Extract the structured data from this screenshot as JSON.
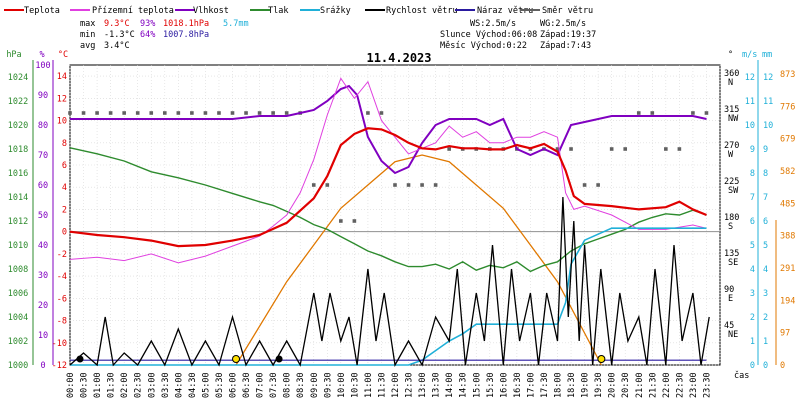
{
  "chart_data": {
    "type": "line",
    "title": "11.4.2023",
    "xlabel": "čas",
    "legend": [
      {
        "label": "Teplota",
        "color": "#e00000"
      },
      {
        "label": "Přízemní teplota",
        "color": "#e040e0"
      },
      {
        "label": "Vlhkost",
        "color": "#8000c0"
      },
      {
        "label": "Tlak",
        "color": "#2e8b2e"
      },
      {
        "label": "Srážky",
        "color": "#20b0d8"
      },
      {
        "label": "Rychlost větru",
        "color": "#000000"
      },
      {
        "label": "Náraz větru",
        "color": "#2a1aa0"
      },
      {
        "label": "Směr větru",
        "color": "#606060"
      }
    ],
    "stats": {
      "max_label": "max",
      "min_label": "min",
      "avg_label": "avg",
      "max_temp": "9.3°C",
      "max_hum": "93%",
      "max_press": "1018.1hPa",
      "max_rain": "5.7mm",
      "min_temp": "-1.3°C",
      "min_hum": "64%",
      "min_press": "1007.8hPa",
      "avg_temp": "3.4°C",
      "ws": "WS:2.5m/s",
      "wg": "WG:2.5m/s",
      "slunce": "Slunce Východ:06:08",
      "slunce_zapad": "Západ:19:37",
      "mesic": "Měsíc  Východ:0:22",
      "mesic_zapad": "Západ:7:43"
    },
    "axes": {
      "hpa_title": "hPa",
      "pct_title": "%",
      "c_title": "°C",
      "deg_title": "°",
      "ms_title": "m/s",
      "mm_title": "mm",
      "hpa_ticks": [
        "1000",
        "1002",
        "1004",
        "1006",
        "1008",
        "1010",
        "1012",
        "1014",
        "1016",
        "1018",
        "1020",
        "1022",
        "1024"
      ],
      "pct_ticks": [
        "0",
        "10",
        "20",
        "30",
        "40",
        "50",
        "60",
        "70",
        "80",
        "90",
        "100"
      ],
      "c_ticks": [
        "-12",
        "-10",
        "-8",
        "-6",
        "-4",
        "-2",
        "0",
        "2",
        "4",
        "6",
        "8",
        "10",
        "12",
        "14"
      ],
      "dir_ticks": [
        {
          "deg": "45",
          "dir": "NE"
        },
        {
          "deg": "90",
          "dir": "E"
        },
        {
          "deg": "135",
          "dir": "SE"
        },
        {
          "deg": "180",
          "dir": "S"
        },
        {
          "deg": "225",
          "dir": "SW"
        },
        {
          "deg": "270",
          "dir": "W"
        },
        {
          "deg": "315",
          "dir": "NW"
        },
        {
          "deg": "360",
          "dir": "N"
        }
      ],
      "ms_ticks": [
        "0",
        "1",
        "2",
        "3",
        "4",
        "5",
        "6",
        "7",
        "8",
        "9",
        "10",
        "11",
        "12"
      ],
      "mm_ticks": [
        "0",
        "97",
        "194",
        "291",
        "388",
        "485",
        "582",
        "679",
        "776",
        "873"
      ],
      "time_ticks": [
        "00:00",
        "00:30",
        "01:00",
        "01:30",
        "02:00",
        "02:30",
        "03:00",
        "03:30",
        "04:00",
        "04:30",
        "05:00",
        "05:30",
        "06:00",
        "06:30",
        "07:00",
        "07:30",
        "08:00",
        "08:30",
        "09:00",
        "09:30",
        "10:00",
        "10:30",
        "11:00",
        "11:30",
        "12:00",
        "12:30",
        "13:00",
        "13:30",
        "14:00",
        "14:30",
        "15:00",
        "15:30",
        "16:00",
        "16:30",
        "17:00",
        "17:30",
        "18:00",
        "18:30",
        "19:00",
        "19:30",
        "20:00",
        "20:30",
        "21:00",
        "21:30",
        "22:00",
        "22:30",
        "23:00",
        "23:30"
      ]
    },
    "series": {
      "temperature_c": {
        "x_hours": [
          0,
          1,
          2,
          3,
          4,
          5,
          6,
          7,
          8,
          9,
          9.5,
          10,
          10.5,
          11,
          11.5,
          12,
          12.5,
          13,
          13.5,
          14,
          14.5,
          15,
          15.5,
          16,
          16.5,
          17,
          17.5,
          18,
          18.3,
          18.6,
          19,
          20,
          21,
          22,
          22.5,
          23,
          23.5
        ],
        "y": [
          0,
          -0.3,
          -0.5,
          -0.8,
          -1.3,
          -1.2,
          -0.8,
          -0.3,
          0.8,
          3,
          5,
          7.8,
          8.8,
          9.3,
          9.2,
          8.7,
          8,
          7.5,
          7.4,
          7.7,
          7.5,
          7.5,
          7.4,
          7.4,
          7.8,
          7.5,
          7.9,
          7.2,
          5.5,
          3.2,
          2.5,
          2.3,
          2,
          2.2,
          2.7,
          2,
          1.5
        ]
      },
      "ground_temp_c": {
        "x_hours": [
          0,
          1,
          2,
          3,
          4,
          5,
          6,
          7,
          7.5,
          8,
          8.5,
          9,
          9.5,
          10,
          10.5,
          11,
          11.5,
          12,
          12.5,
          13,
          13.5,
          14,
          14.5,
          15,
          15.5,
          16,
          16.5,
          17,
          17.5,
          18,
          18.3,
          18.6,
          19,
          20,
          21,
          22,
          23,
          23.5
        ],
        "y": [
          -2.5,
          -2.3,
          -2.6,
          -2,
          -2.8,
          -2.2,
          -1.3,
          -0.4,
          0.5,
          1.5,
          3.5,
          6.5,
          10.5,
          13.8,
          12,
          13.5,
          10,
          8.5,
          7,
          7.5,
          8,
          9.5,
          8.5,
          9,
          8,
          8,
          8.5,
          8.5,
          9,
          8.5,
          3.5,
          2,
          2.3,
          1.5,
          0.2,
          0.2,
          0.6,
          0.3
        ]
      },
      "humidity_pct": {
        "x_hours": [
          0,
          1,
          2,
          3,
          4,
          5,
          6,
          7,
          8,
          8.5,
          9,
          9.5,
          10,
          10.3,
          10.6,
          11,
          11.5,
          12,
          12.5,
          13,
          13.5,
          14,
          14.5,
          15,
          15.5,
          16,
          16.5,
          17,
          17.5,
          18,
          18.5,
          19,
          20,
          21,
          22,
          23,
          23.5
        ],
        "y": [
          82,
          82,
          82,
          82,
          82,
          82,
          82,
          83,
          83,
          84,
          85,
          88,
          92,
          93,
          90,
          76,
          68,
          64,
          66,
          74,
          80,
          82,
          82,
          82,
          80,
          82,
          72,
          70,
          72,
          70,
          80,
          81,
          83,
          83,
          83,
          83,
          82
        ]
      },
      "pressure_hpa": {
        "x_hours": [
          0,
          1,
          2,
          3,
          4,
          5,
          6,
          7,
          7.5,
          8,
          8.5,
          9,
          9.5,
          10,
          10.5,
          11,
          11.5,
          12,
          12.5,
          13,
          13.5,
          14,
          14.5,
          15,
          15.5,
          16,
          16.5,
          17,
          17.5,
          18,
          18.5,
          19,
          19.5,
          20,
          20.5,
          21,
          21.5,
          22,
          22.5,
          23,
          23.5
        ],
        "y": [
          1018.1,
          1017.6,
          1017,
          1016.1,
          1015.6,
          1015,
          1014.3,
          1013.6,
          1013.3,
          1012.8,
          1012.3,
          1011.7,
          1011.3,
          1010.7,
          1010.1,
          1009.5,
          1009.1,
          1008.6,
          1008.2,
          1008.2,
          1008.4,
          1008.0,
          1008.6,
          1007.9,
          1008.3,
          1008.1,
          1008.6,
          1007.8,
          1008.3,
          1008.6,
          1009.5,
          1010.1,
          1010.5,
          1010.9,
          1011.3,
          1011.9,
          1012.3,
          1012.6,
          1012.5,
          1012.9,
          1012.5
        ]
      },
      "rain_mm": {
        "x_hours": [
          0,
          12.5,
          13,
          13.5,
          14,
          14.5,
          15,
          16,
          17,
          18,
          18.3,
          18.5,
          19,
          20,
          21,
          23.5
        ],
        "y": [
          0,
          0,
          0.2,
          0.6,
          1.0,
          1.3,
          1.7,
          1.7,
          1.7,
          1.7,
          2.6,
          4.2,
          5.2,
          5.7,
          5.7,
          5.7
        ]
      },
      "wind_speed_ms": {
        "x_hours": [
          0,
          0.5,
          1,
          1.3,
          1.6,
          2,
          2.5,
          3,
          3.5,
          4,
          4.5,
          5,
          5.5,
          6,
          6.5,
          7,
          7.5,
          8,
          8.5,
          9,
          9.3,
          9.6,
          10,
          10.3,
          10.6,
          11,
          11.3,
          11.6,
          12,
          12.5,
          13,
          13.5,
          14,
          14.3,
          14.6,
          15,
          15.3,
          15.6,
          16,
          16.3,
          16.6,
          17,
          17.3,
          17.6,
          18,
          18.2,
          18.4,
          18.6,
          18.8,
          19,
          19.3,
          19.6,
          20,
          20.3,
          20.6,
          21,
          21.3,
          21.6,
          22,
          22.3,
          22.6,
          23,
          23.3,
          23.6
        ],
        "y": [
          0,
          0.5,
          0,
          2,
          0,
          0.5,
          0,
          1,
          0,
          1.5,
          0,
          1,
          0,
          2,
          0,
          1,
          0,
          1,
          0,
          3,
          1,
          3,
          1,
          2,
          0,
          4,
          1,
          3,
          0,
          1,
          0,
          2,
          1,
          4,
          0,
          3,
          1,
          5,
          0,
          4,
          1,
          3,
          0,
          3,
          1,
          7,
          2,
          6,
          1,
          5,
          0,
          4,
          0,
          3,
          1,
          2,
          0,
          4,
          0,
          5,
          1,
          3,
          0,
          2
        ]
      },
      "wind_gust_ms": {
        "x_hours": [
          0,
          23.5
        ],
        "y": [
          0.2,
          0.2
        ]
      },
      "wind_dir_deg": {
        "x_hours": [
          0,
          1,
          2,
          3,
          4,
          5,
          6,
          7,
          8,
          9,
          10,
          11,
          12,
          13,
          14,
          15,
          16,
          17,
          18,
          19,
          20,
          21,
          22,
          23
        ],
        "y": [
          315,
          315,
          315,
          315,
          315,
          315,
          315,
          315,
          315,
          225,
          180,
          315,
          225,
          225,
          270,
          270,
          270,
          270,
          270,
          225,
          270,
          315,
          270,
          315
        ]
      },
      "solar_curve": {
        "x_hours": [
          6.13,
          8,
          10,
          12,
          13,
          14,
          16,
          18,
          19.62
        ],
        "y": [
          0,
          250,
          470,
          610,
          630,
          610,
          470,
          250,
          0
        ]
      }
    }
  }
}
